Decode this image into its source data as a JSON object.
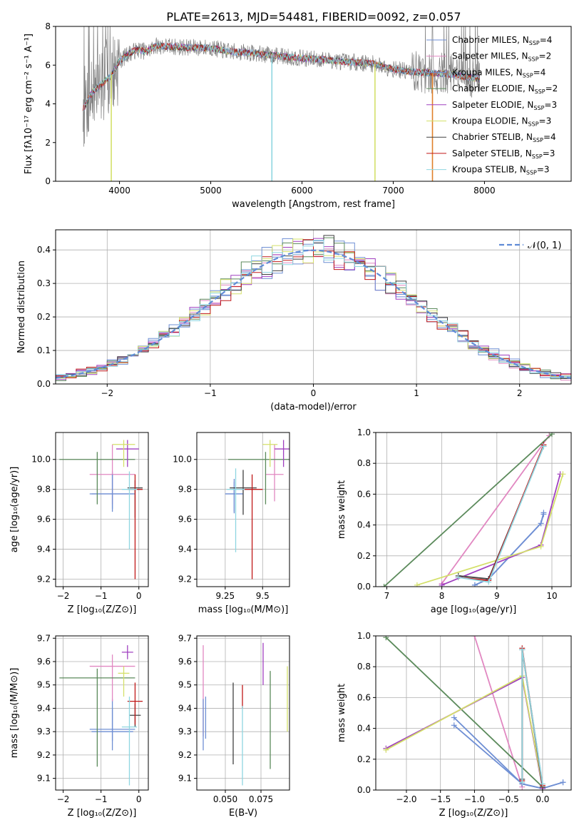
{
  "figure": {
    "title": "PLATE=2613, MJD=54481, FIBERID=0092, z=0.057"
  },
  "series_colors": [
    "#6f8fd4",
    "#e187c1",
    "#6f8fd4",
    "#5b8a5b",
    "#a040c0",
    "#d4e06a",
    "#404040",
    "#c01818",
    "#8ed6e0"
  ],
  "legend_fit": [
    {
      "base": "Chabrier MILES, N",
      "sub": "SSP",
      "tail": "=4"
    },
    {
      "base": "Salpeter MILES, N",
      "sub": "SSP",
      "tail": "=2"
    },
    {
      "base": "Kroupa MILES, N",
      "sub": "SSP",
      "tail": "=4"
    },
    {
      "base": "Chabrier ELODIE, N",
      "sub": "SSP",
      "tail": "=2"
    },
    {
      "base": "Salpeter ELODIE, N",
      "sub": "SSP",
      "tail": "=3"
    },
    {
      "base": "Kroupa ELODIE, N",
      "sub": "SSP",
      "tail": "=3"
    },
    {
      "base": "Chabrier STELIB, N",
      "sub": "SSP",
      "tail": "=4"
    },
    {
      "base": "Salpeter STELIB, N",
      "sub": "SSP",
      "tail": "=3"
    },
    {
      "base": "Kroupa STELIB, N",
      "sub": "SSP",
      "tail": "=3"
    }
  ],
  "chart_data": [
    {
      "id": "spectrum",
      "type": "line",
      "xlabel": "wavelength [Angstrom, rest frame]",
      "ylabel": "Flux [fλ10⁻¹⁷ erg cm⁻² s⁻¹ A⁻¹]",
      "xlim": [
        3300,
        8950
      ],
      "ylim": [
        0,
        8
      ],
      "xticks": [
        4000,
        5000,
        6000,
        7000,
        8000
      ],
      "yticks": [
        0,
        2,
        4,
        6,
        8
      ],
      "model_continuum": {
        "x": [
          3600,
          3700,
          3800,
          3900,
          4000,
          4100,
          4200,
          4300,
          4400,
          4600,
          4800,
          5000,
          5200,
          5400,
          5600,
          5800,
          6000,
          6200,
          6400,
          6600,
          6800,
          7000,
          7200,
          7400,
          7600,
          7800,
          7950
        ],
        "y": [
          3.7,
          4.6,
          5.0,
          5.4,
          6.2,
          6.6,
          6.8,
          6.7,
          7.0,
          6.95,
          6.9,
          6.9,
          6.7,
          6.65,
          6.55,
          6.45,
          6.35,
          6.3,
          6.2,
          6.15,
          6.05,
          5.8,
          5.65,
          5.6,
          5.55,
          5.4,
          5.3
        ]
      },
      "data_extent": [
        3600,
        7950
      ],
      "model_dropouts": [
        3910,
        5670,
        6800,
        7430
      ]
    },
    {
      "id": "residual_hist",
      "type": "histogram",
      "xlabel": "(data-model)/error",
      "ylabel": "Normed distribution",
      "xlim": [
        -2.5,
        2.5
      ],
      "ylim": [
        0,
        0.46
      ],
      "xticks": [
        -2,
        -1,
        0,
        1,
        2
      ],
      "yticks": [
        0.0,
        0.1,
        0.2,
        0.3,
        0.4
      ],
      "bin_width": 0.1,
      "reference_curve": {
        "name": "𝒩(0, 1)",
        "mean": 0,
        "sigma": 1
      }
    },
    {
      "id": "age_vs_Z",
      "type": "scatter",
      "xlabel": "Z [log₁₀(Z/Z⊙)]",
      "ylabel": "age  [log₁₀(age/yr)]",
      "xlim": [
        -2.2,
        0.25
      ],
      "ylim": [
        9.15,
        10.18
      ],
      "xticks": [
        -2,
        -1,
        0
      ],
      "yticks": [
        9.2,
        9.4,
        9.6,
        9.8,
        10.0
      ],
      "points": [
        {
          "x": -0.7,
          "y": 9.77,
          "xerr": 0.6,
          "yerr_lo": 0.1,
          "yerr_hi": 0.15
        },
        {
          "x": -0.7,
          "y": 9.9,
          "xerr": 0.6,
          "yerr_lo": 0.2,
          "yerr_hi": 0.2
        },
        {
          "x": -0.7,
          "y": 9.77,
          "xerr": 0.55,
          "yerr_lo": 0.12,
          "yerr_hi": 0.13
        },
        {
          "x": -1.1,
          "y": 10.0,
          "xerr": 1.0,
          "yerr_lo": 0.3,
          "yerr_hi": 0.05
        },
        {
          "x": -0.3,
          "y": 10.07,
          "xerr": 0.3,
          "yerr_lo": 0.12,
          "yerr_hi": 0.06
        },
        {
          "x": -0.4,
          "y": 10.1,
          "xerr": 0.3,
          "yerr_lo": 0.15,
          "yerr_hi": 0.03
        },
        {
          "x": -0.1,
          "y": 9.81,
          "xerr": 0.2,
          "yerr_lo": 0.2,
          "yerr_hi": 0.05
        },
        {
          "x": -0.1,
          "y": 9.8,
          "xerr": 0.2,
          "yerr_lo": 0.6,
          "yerr_hi": 0.1
        },
        {
          "x": -0.25,
          "y": 9.8,
          "xerr": 0.2,
          "yerr_lo": 0.4,
          "yerr_hi": 0.12
        }
      ]
    },
    {
      "id": "age_vs_mass",
      "type": "scatter",
      "xlabel": "mass [log₁₀(M/M⊙)]",
      "ylabel": "",
      "xlim": [
        9.06,
        9.68
      ],
      "ylim": [
        9.15,
        10.18
      ],
      "xticks": [
        9.25,
        9.5
      ],
      "yticks": [
        9.2,
        9.4,
        9.6,
        9.8,
        10.0
      ],
      "points": [
        {
          "x": 9.31,
          "y": 9.77,
          "xerr": 0.06,
          "yerr_lo": 0.12,
          "yerr_hi": 0.1
        },
        {
          "x": 9.58,
          "y": 9.9,
          "xerr": 0.06,
          "yerr_lo": 0.18,
          "yerr_hi": 0.2
        },
        {
          "x": 9.31,
          "y": 9.77,
          "xerr": 0.06,
          "yerr_lo": 0.13,
          "yerr_hi": 0.08
        },
        {
          "x": 9.52,
          "y": 10.0,
          "xerr": 0.25,
          "yerr_lo": 0.3,
          "yerr_hi": 0.05
        },
        {
          "x": 9.64,
          "y": 10.07,
          "xerr": 0.06,
          "yerr_lo": 0.12,
          "yerr_hi": 0.06
        },
        {
          "x": 9.55,
          "y": 10.1,
          "xerr": 0.05,
          "yerr_lo": 0.15,
          "yerr_hi": 0.03
        },
        {
          "x": 9.37,
          "y": 9.81,
          "xerr": 0.09,
          "yerr_lo": 0.18,
          "yerr_hi": 0.12
        },
        {
          "x": 9.43,
          "y": 9.8,
          "xerr": 0.07,
          "yerr_lo": 0.6,
          "yerr_hi": 0.1
        },
        {
          "x": 9.32,
          "y": 9.8,
          "xerr": 0.06,
          "yerr_lo": 0.42,
          "yerr_hi": 0.14
        }
      ]
    },
    {
      "id": "weight_vs_age",
      "type": "line",
      "xlabel": "age  [log₁₀(age/yr)]",
      "ylabel": "mass weight",
      "xlim": [
        6.8,
        10.35
      ],
      "ylim": [
        0,
        1
      ],
      "xticks": [
        7,
        8,
        9,
        10
      ],
      "yticks": [
        0.0,
        0.2,
        0.4,
        0.6,
        0.8,
        1.0
      ],
      "series": [
        {
          "x": [
            8.6,
            8.85,
            9.8,
            9.85
          ],
          "y": [
            0.01,
            0.05,
            0.41,
            0.48
          ]
        },
        {
          "x": [
            8.0,
            9.95
          ],
          "y": [
            0.02,
            0.98
          ]
        },
        {
          "x": [
            8.6,
            8.85,
            9.8,
            9.85
          ],
          "y": [
            0.01,
            0.05,
            0.41,
            0.47
          ]
        },
        {
          "x": [
            6.95,
            10.0
          ],
          "y": [
            0.0,
            0.99
          ]
        },
        {
          "x": [
            8.0,
            9.8,
            10.15
          ],
          "y": [
            0.01,
            0.27,
            0.73
          ]
        },
        {
          "x": [
            7.55,
            9.8,
            10.2
          ],
          "y": [
            0.01,
            0.26,
            0.73
          ]
        },
        {
          "x": [
            8.3,
            8.85,
            9.85
          ],
          "y": [
            0.07,
            0.05,
            0.91
          ]
        },
        {
          "x": [
            8.3,
            8.85,
            9.85
          ],
          "y": [
            0.06,
            0.04,
            0.92
          ]
        },
        {
          "x": [
            8.3,
            8.85,
            9.85
          ],
          "y": [
            0.06,
            0.03,
            0.91
          ]
        }
      ]
    },
    {
      "id": "mass_vs_Z",
      "type": "scatter",
      "xlabel": "Z [log₁₀(Z/Z⊙)]",
      "ylabel": "mass [log₁₀(M/M⊙)]",
      "xlim": [
        -2.2,
        0.25
      ],
      "ylim": [
        9.05,
        9.71
      ],
      "xticks": [
        -2,
        -1,
        0
      ],
      "yticks": [
        9.1,
        9.2,
        9.3,
        9.4,
        9.5,
        9.6,
        9.7
      ],
      "points": [
        {
          "x": -0.7,
          "y": 9.31,
          "xerr": 0.6,
          "yerr_lo": 0.05,
          "yerr_hi": 0.13
        },
        {
          "x": -0.7,
          "y": 9.58,
          "xerr": 0.6,
          "yerr_lo": 0.15,
          "yerr_hi": 0.05
        },
        {
          "x": -0.7,
          "y": 9.3,
          "xerr": 0.55,
          "yerr_lo": 0.08,
          "yerr_hi": 0.1
        },
        {
          "x": -1.1,
          "y": 9.53,
          "xerr": 1.0,
          "yerr_lo": 0.38,
          "yerr_hi": 0.04
        },
        {
          "x": -0.3,
          "y": 9.64,
          "xerr": 0.15,
          "yerr_lo": 0.03,
          "yerr_hi": 0.03
        },
        {
          "x": -0.4,
          "y": 9.55,
          "xerr": 0.15,
          "yerr_lo": 0.1,
          "yerr_hi": 0.03
        },
        {
          "x": -0.1,
          "y": 9.37,
          "xerr": 0.15,
          "yerr_lo": 0.05,
          "yerr_hi": 0.05
        },
        {
          "x": -0.1,
          "y": 9.43,
          "xerr": 0.2,
          "yerr_lo": 0.1,
          "yerr_hi": 0.08
        },
        {
          "x": -0.25,
          "y": 9.32,
          "xerr": 0.2,
          "yerr_lo": 0.25,
          "yerr_hi": 0.13
        }
      ]
    },
    {
      "id": "mass_vs_EBV",
      "type": "scatter",
      "xlabel": "E(B-V)",
      "ylabel": "",
      "xlim": [
        0.03,
        0.095
      ],
      "ylim": [
        9.05,
        9.71
      ],
      "xticks": [
        0.05,
        0.075
      ],
      "yticks": [
        9.1,
        9.2,
        9.3,
        9.4,
        9.5,
        9.6,
        9.7
      ],
      "points": [
        {
          "x": 0.0362,
          "y": 9.36,
          "xerr": 0,
          "yerr_lo": 0.09,
          "yerr_hi": 0.09
        },
        {
          "x": 0.0345,
          "y": 9.48,
          "xerr": 0,
          "yerr_lo": 0.2,
          "yerr_hi": 0.19
        },
        {
          "x": 0.0345,
          "y": 9.36,
          "xerr": 0,
          "yerr_lo": 0.14,
          "yerr_hi": 0.08
        },
        {
          "x": 0.0815,
          "y": 9.38,
          "xerr": 0,
          "yerr_lo": 0.24,
          "yerr_hi": 0.18
        },
        {
          "x": 0.0765,
          "y": 9.58,
          "xerr": 0,
          "yerr_lo": 0.08,
          "yerr_hi": 0.1
        },
        {
          "x": 0.0935,
          "y": 9.45,
          "xerr": 0,
          "yerr_lo": 0.15,
          "yerr_hi": 0.13
        },
        {
          "x": 0.0555,
          "y": 9.34,
          "xerr": 0,
          "yerr_lo": 0.18,
          "yerr_hi": 0.17
        },
        {
          "x": 0.062,
          "y": 9.45,
          "xerr": 0,
          "yerr_lo": 0.05,
          "yerr_hi": 0.05
        },
        {
          "x": 0.062,
          "y": 9.25,
          "xerr": 0,
          "yerr_lo": 0.18,
          "yerr_hi": 0.16
        }
      ]
    },
    {
      "id": "weight_vs_Z",
      "type": "line",
      "xlabel": "Z [log₁₀(Z/Z⊙)]",
      "ylabel": "mass weight",
      "xlim": [
        -2.45,
        0.42
      ],
      "ylim": [
        0,
        1
      ],
      "xticks": [
        -2.0,
        -1.5,
        -1.0,
        -0.5,
        0.0
      ],
      "yticks": [
        0.0,
        0.2,
        0.4,
        0.6,
        0.8,
        1.0
      ],
      "series": [
        {
          "x": [
            -1.3,
            -0.3,
            0.0,
            0.3
          ],
          "y": [
            0.47,
            0.04,
            0.01,
            0.05
          ]
        },
        {
          "x": [
            -1.0,
            -0.3
          ],
          "y": [
            1.0,
            0.02
          ]
        },
        {
          "x": [
            -1.3,
            -0.3,
            0.0,
            0.3
          ],
          "y": [
            0.42,
            0.04,
            0.01,
            0.05
          ]
        },
        {
          "x": [
            -2.3,
            0.0
          ],
          "y": [
            0.99,
            0.02
          ]
        },
        {
          "x": [
            -2.3,
            -0.3,
            0.0
          ],
          "y": [
            0.27,
            0.73,
            0.01
          ]
        },
        {
          "x": [
            -2.3,
            -0.3,
            0.0
          ],
          "y": [
            0.26,
            0.74,
            0.02
          ]
        },
        {
          "x": [
            -0.3,
            -0.3,
            0.0
          ],
          "y": [
            0.07,
            0.91,
            0.02
          ]
        },
        {
          "x": [
            -0.3,
            -0.3,
            0.0
          ],
          "y": [
            0.06,
            0.92,
            0.03
          ]
        },
        {
          "x": [
            -0.3,
            -0.3,
            0.0
          ],
          "y": [
            0.05,
            0.91,
            0.04
          ]
        }
      ]
    }
  ]
}
